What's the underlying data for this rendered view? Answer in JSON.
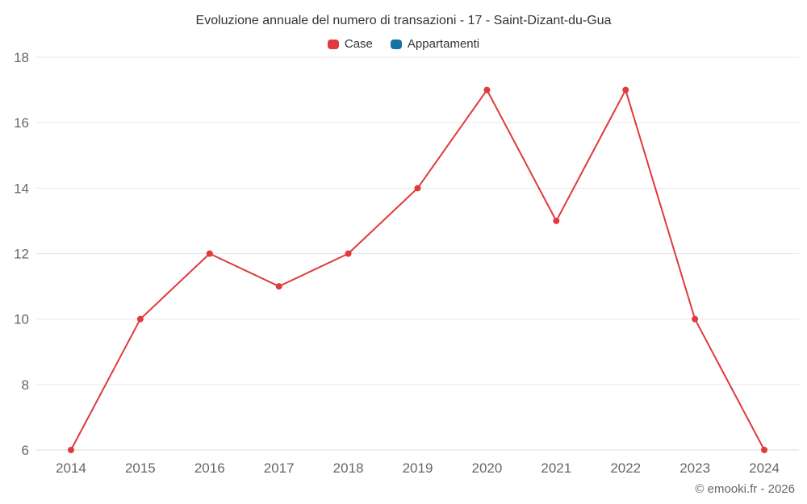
{
  "footer": "© emooki.fr - 2026",
  "chart_data": {
    "type": "line",
    "title": "Evoluzione annuale del numero di transazioni - 17 - Saint-Dizant-du-Gua",
    "categories": [
      "2014",
      "2015",
      "2016",
      "2017",
      "2018",
      "2019",
      "2020",
      "2021",
      "2022",
      "2023",
      "2024"
    ],
    "series": [
      {
        "name": "Case",
        "color": "#e0393e",
        "values": [
          6,
          10,
          12,
          11,
          12,
          14,
          17,
          13,
          17,
          10,
          6
        ]
      },
      {
        "name": "Appartamenti",
        "color": "#1672a0",
        "values": []
      }
    ],
    "xlabel": "",
    "ylabel": "",
    "ylim": [
      6,
      18
    ],
    "yticks": [
      6,
      8,
      10,
      12,
      14,
      16,
      18
    ],
    "grid": "horizontal",
    "grid_color": "#e6e6e6",
    "axis_line_color": "#d8d8d8",
    "tick_label_color": "#666666",
    "legend_position": "top",
    "marker_radius": 4,
    "line_width": 2
  }
}
